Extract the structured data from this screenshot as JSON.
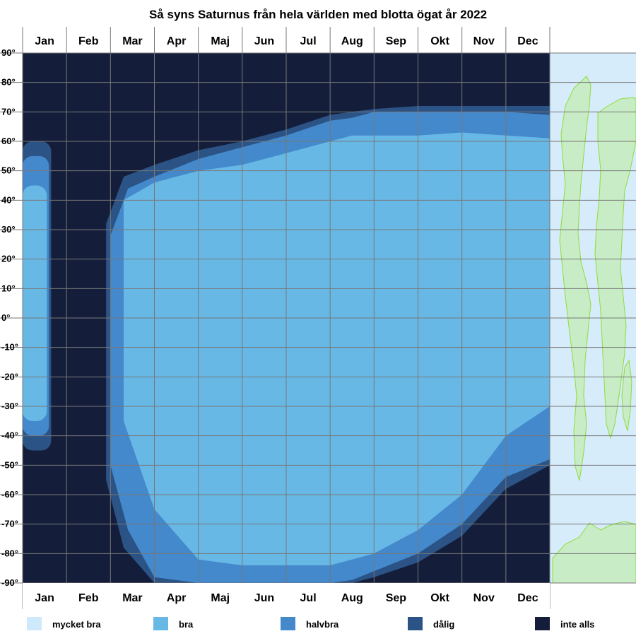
{
  "chart_data": {
    "type": "heatmap",
    "title": "Så syns Saturnus från hela världen med blotta ögat år 2022",
    "months": [
      "Jan",
      "Feb",
      "Mar",
      "Apr",
      "Maj",
      "Jun",
      "Jul",
      "Aug",
      "Sep",
      "Okt",
      "Nov",
      "Dec"
    ],
    "latitude_ticks": [
      "90°",
      "80°",
      "70°",
      "60°",
      "50°",
      "40°",
      "30°",
      "20°",
      "10°",
      "0°",
      "-10°",
      "-20°",
      "-30°",
      "-40°",
      "-50°",
      "-60°",
      "-70°",
      "-80°",
      "-90°"
    ],
    "latitude_range": [
      -90,
      90
    ],
    "grid": true,
    "legend_placement": "bottom",
    "legend": [
      {
        "label": "mycket bra",
        "color": "#cde9fb"
      },
      {
        "label": "bra",
        "color": "#68b8e6"
      },
      {
        "label": "halvbra",
        "color": "#4389cc"
      },
      {
        "label": "dålig",
        "color": "#2b5386"
      },
      {
        "label": "inte alls",
        "color": "#141e3b"
      }
    ],
    "regions": {
      "bra": {
        "top_edge_lat": [
          [
            0,
            -999
          ],
          [
            1.2,
            -999
          ],
          [
            2.3,
            40
          ],
          [
            3,
            46
          ],
          [
            4,
            50
          ],
          [
            5,
            52
          ],
          [
            6,
            56
          ],
          [
            7,
            60
          ],
          [
            7.5,
            62
          ],
          [
            8,
            62
          ],
          [
            9,
            62
          ],
          [
            10,
            63
          ],
          [
            11,
            62
          ],
          [
            12,
            61
          ]
        ],
        "bottom_edge_lat": [
          [
            0,
            999
          ],
          [
            1.2,
            999
          ],
          [
            2.3,
            -35
          ],
          [
            3,
            -65
          ],
          [
            4,
            -82
          ],
          [
            5,
            -84
          ],
          [
            6,
            -84
          ],
          [
            7,
            -84
          ],
          [
            7.5,
            -82
          ],
          [
            8,
            -80
          ],
          [
            9,
            -72
          ],
          [
            10,
            -60
          ],
          [
            11,
            -40
          ],
          [
            12,
            -30
          ]
        ],
        "jan_strip": {
          "month_range": [
            0,
            0.55
          ],
          "lat_range": [
            -35,
            45
          ]
        }
      },
      "halvbra": {
        "top_edge_lat": [
          [
            0,
            -999
          ],
          [
            1.1,
            -999
          ],
          [
            2,
            28
          ],
          [
            2.4,
            44
          ],
          [
            3,
            48
          ],
          [
            4,
            54
          ],
          [
            5,
            58
          ],
          [
            6,
            62
          ],
          [
            7,
            67
          ],
          [
            7.5,
            68
          ],
          [
            8,
            70
          ],
          [
            9,
            70
          ],
          [
            10,
            70
          ],
          [
            11,
            70
          ],
          [
            12,
            69
          ]
        ],
        "bottom_edge_lat": [
          [
            0,
            999
          ],
          [
            1.1,
            999
          ],
          [
            2,
            -50
          ],
          [
            2.4,
            -72
          ],
          [
            3,
            -88
          ],
          [
            4,
            -90
          ],
          [
            5,
            -90
          ],
          [
            6,
            -90
          ],
          [
            7,
            -90
          ],
          [
            7.5,
            -89
          ],
          [
            8,
            -86
          ],
          [
            9,
            -80
          ],
          [
            10,
            -70
          ],
          [
            11,
            -54
          ],
          [
            12,
            -48
          ]
        ],
        "jan_strip": {
          "month_range": [
            0,
            0.6
          ],
          "lat_range": [
            -40,
            55
          ]
        }
      },
      "dalig": {
        "top_edge_lat": [
          [
            0,
            -999
          ],
          [
            1,
            -999
          ],
          [
            1.9,
            32
          ],
          [
            2.3,
            48
          ],
          [
            3,
            52
          ],
          [
            4,
            57
          ],
          [
            5,
            60
          ],
          [
            6,
            64
          ],
          [
            7,
            69
          ],
          [
            7.5,
            70
          ],
          [
            8,
            71
          ],
          [
            9,
            72
          ],
          [
            10,
            72
          ],
          [
            11,
            72
          ],
          [
            12,
            72
          ]
        ],
        "bottom_edge_lat": [
          [
            0,
            999
          ],
          [
            1,
            999
          ],
          [
            1.9,
            -55
          ],
          [
            2.3,
            -78
          ],
          [
            3,
            -90
          ],
          [
            4,
            -90
          ],
          [
            5,
            -90
          ],
          [
            6,
            -90
          ],
          [
            7,
            -90
          ],
          [
            7.5,
            -90
          ],
          [
            8,
            -88
          ],
          [
            9,
            -83
          ],
          [
            10,
            -74
          ],
          [
            11,
            -58
          ],
          [
            12,
            -50
          ]
        ],
        "jan_strip": {
          "month_range": [
            0,
            0.65
          ],
          "lat_range": [
            -45,
            60
          ]
        }
      }
    }
  }
}
